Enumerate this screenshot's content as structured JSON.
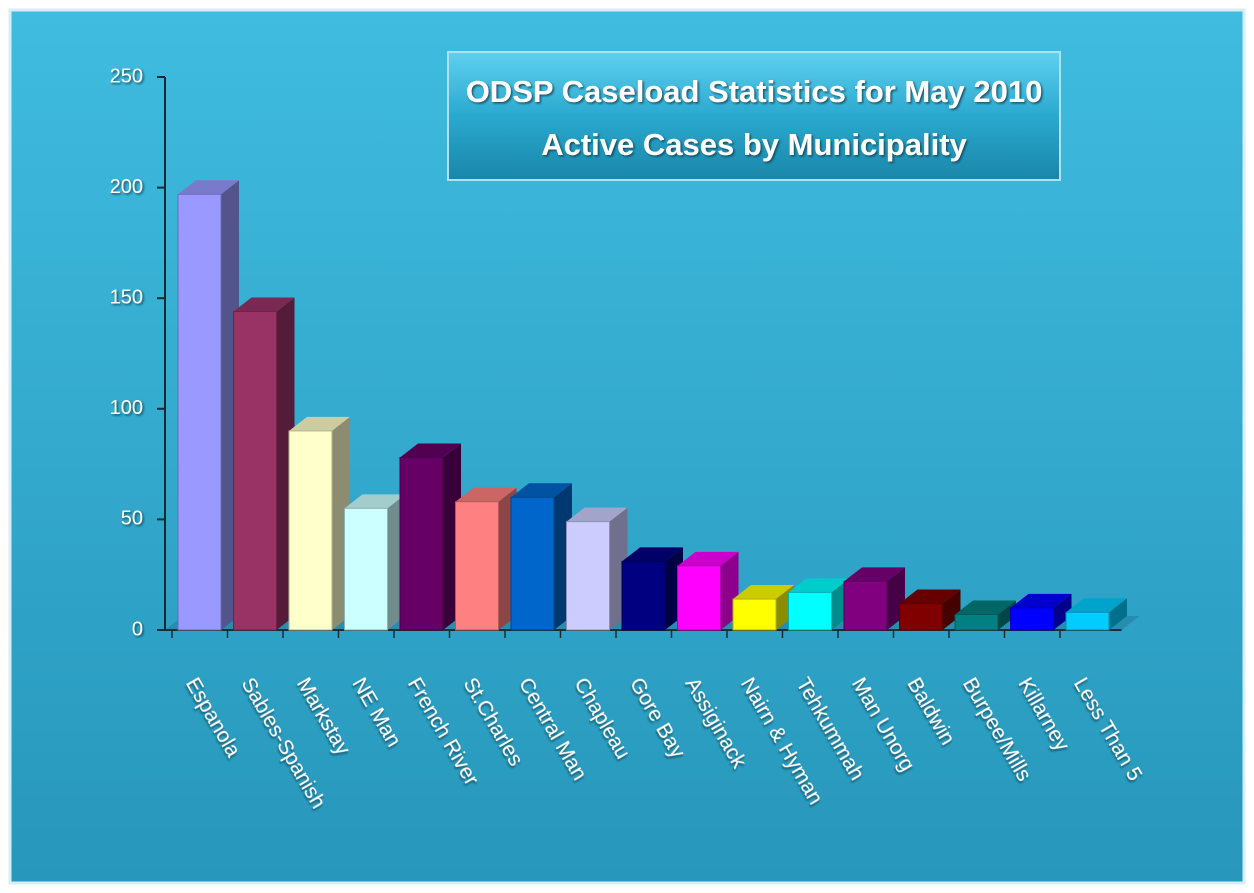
{
  "chart_data": {
    "type": "bar",
    "title": "ODSP Caseload Statistics for May 2010",
    "subtitle": "Active Cases by Municipality",
    "categories": [
      "Espanola",
      "Sables-Spanish",
      "Markstay",
      "NE Man",
      "French River",
      "St.Charles",
      "Central Man",
      "Chapleau",
      "Gore Bay",
      "Assiginack",
      "Nairn & Hyman",
      "Tehkummah",
      "Man Unorg",
      "Baldwin",
      "Burpee/Mills",
      "Killarney",
      "Less Than 5"
    ],
    "values": [
      197,
      144,
      90,
      55,
      78,
      58,
      60,
      49,
      31,
      29,
      14,
      17,
      22,
      12,
      7,
      10,
      8
    ],
    "colors": [
      "#9999ff",
      "#993366",
      "#ffffcc",
      "#ccffff",
      "#660066",
      "#ff8080",
      "#0066cc",
      "#ccccff",
      "#000080",
      "#ff00ff",
      "#ffff00",
      "#00ffff",
      "#800080",
      "#800000",
      "#008080",
      "#0000ff",
      "#00ccff"
    ],
    "ylim": [
      0,
      250
    ],
    "yticks": [
      0,
      50,
      100,
      150,
      200,
      250
    ],
    "grid": false
  }
}
